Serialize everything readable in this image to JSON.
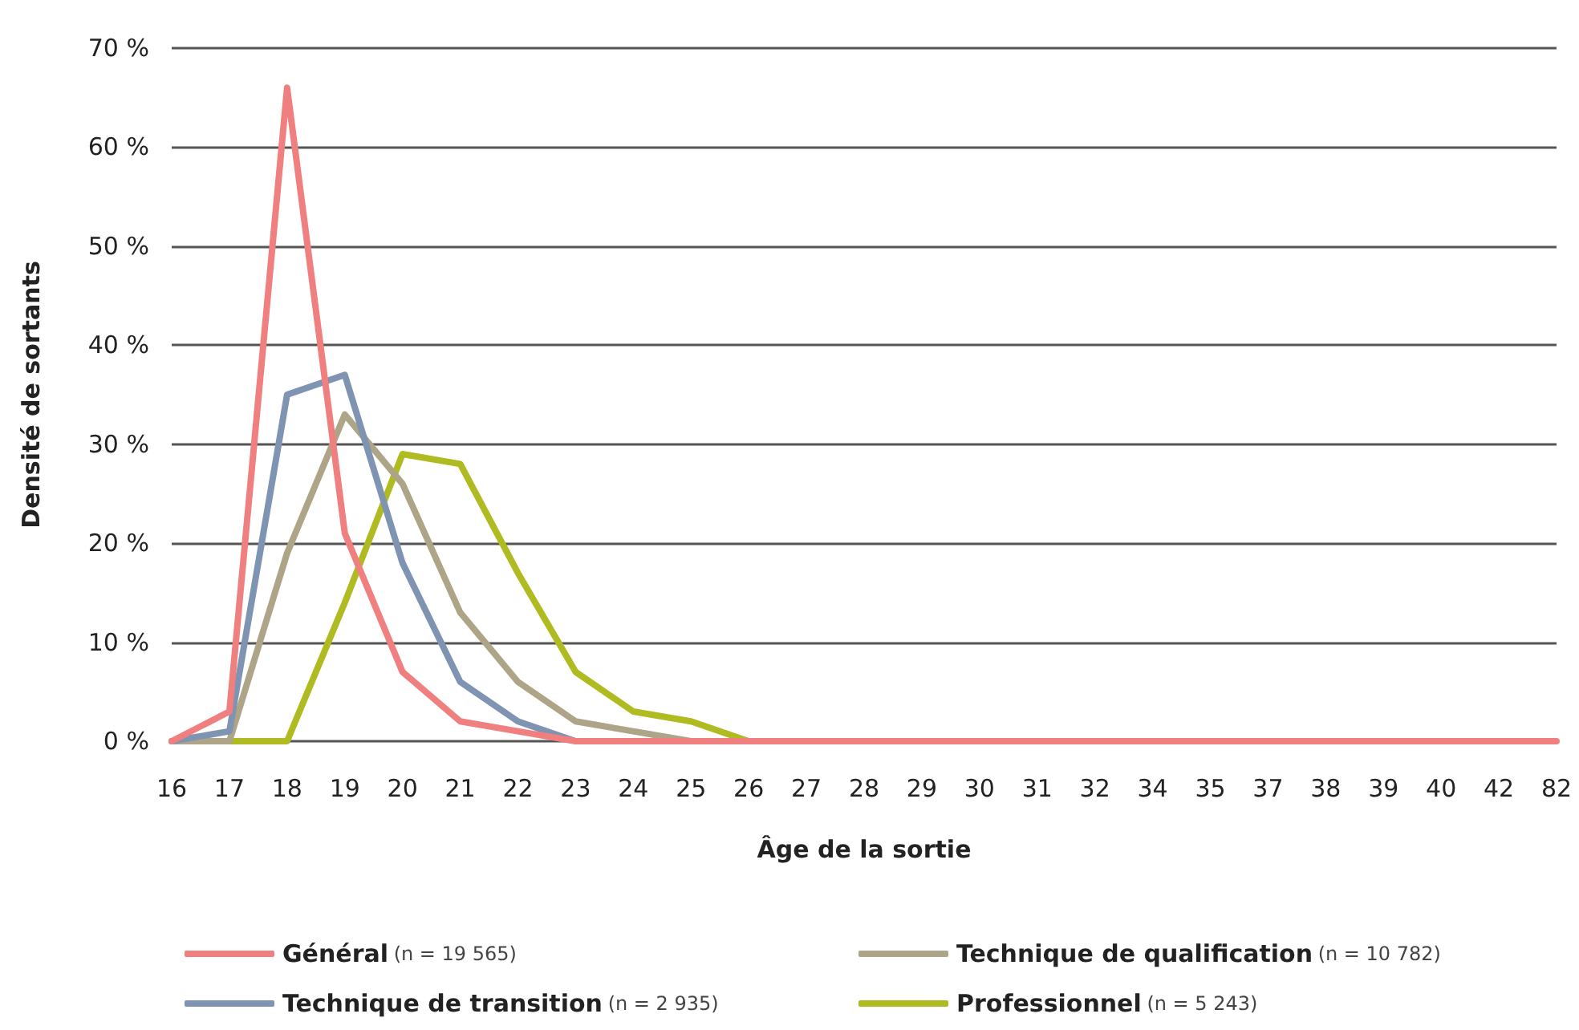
{
  "chart_data": {
    "type": "line",
    "xlabel": "Âge de la sortie",
    "ylabel": "Densité de sortants",
    "categories": [
      "16",
      "17",
      "18",
      "19",
      "20",
      "21",
      "22",
      "23",
      "24",
      "25",
      "26",
      "27",
      "28",
      "29",
      "30",
      "31",
      "32",
      "34",
      "35",
      "37",
      "38",
      "39",
      "40",
      "42",
      "82"
    ],
    "series": [
      {
        "name": "Général (n = 19 565)",
        "color": "#f08080",
        "values": [
          0,
          3,
          66,
          21,
          7,
          2,
          1,
          0,
          0,
          0,
          0,
          0,
          0,
          0,
          0,
          0,
          0,
          0,
          0,
          0,
          0,
          0,
          0,
          0,
          0
        ]
      },
      {
        "name": "Technique de transition (n = 2 935)",
        "color": "#7f93b2",
        "values": [
          0,
          1,
          35,
          37,
          18,
          6,
          2,
          0,
          null,
          null,
          null,
          null,
          null,
          null,
          null,
          null,
          null,
          null,
          null,
          null,
          null,
          null,
          null,
          null,
          null
        ]
      },
      {
        "name": "Technique de qualification (n = 10 782)",
        "color": "#aea487",
        "values": [
          0,
          0,
          19,
          33,
          26,
          13,
          6,
          2,
          1,
          0,
          null,
          null,
          null,
          null,
          null,
          null,
          null,
          null,
          null,
          null,
          null,
          null,
          null,
          null,
          null
        ]
      },
      {
        "name": "Professionnel (n = 5 243)",
        "color": "#b0bb22",
        "values": [
          0,
          0,
          0,
          14,
          29,
          28,
          17,
          7,
          3,
          2,
          0,
          null,
          null,
          null,
          null,
          null,
          null,
          null,
          null,
          null,
          null,
          null,
          null,
          null,
          null
        ]
      }
    ],
    "ylim": [
      0,
      70
    ],
    "yticks": [
      {
        "value": 0,
        "label": "0 %"
      },
      {
        "value": 10,
        "label": "10 %"
      },
      {
        "value": 20,
        "label": "20 %"
      },
      {
        "value": 30,
        "label": "30 %"
      },
      {
        "value": 40,
        "label": "40 %"
      },
      {
        "value": 50,
        "label": "50 %"
      },
      {
        "value": 60,
        "label": "60 %"
      },
      {
        "value": 70,
        "label": "70 %"
      }
    ],
    "grid": "y",
    "legend": "bottom",
    "marker": "none",
    "line_style": "solid"
  }
}
